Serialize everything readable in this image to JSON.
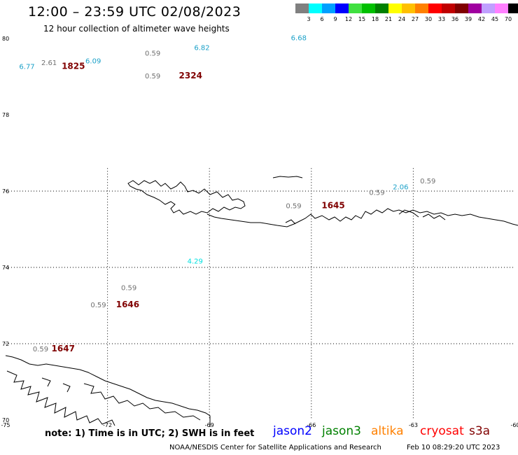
{
  "header": {
    "title": "12:00 – 23:59 UTC 02/08/2023",
    "subtitle": "12 hour collection of altimeter wave heights"
  },
  "legend": {
    "unit": "(ft)",
    "bins": [
      {
        "label": "3",
        "color": "#808080"
      },
      {
        "label": "6",
        "color": "#00ffff"
      },
      {
        "label": "9",
        "color": "#00a0ff"
      },
      {
        "label": "12",
        "color": "#0000ff"
      },
      {
        "label": "15",
        "color": "#40e040"
      },
      {
        "label": "18",
        "color": "#00c000"
      },
      {
        "label": "21",
        "color": "#008000"
      },
      {
        "label": "24",
        "color": "#ffff00"
      },
      {
        "label": "27",
        "color": "#ffc000"
      },
      {
        "label": "30",
        "color": "#ff8000"
      },
      {
        "label": "33",
        "color": "#ff0000"
      },
      {
        "label": "36",
        "color": "#c00000"
      },
      {
        "label": "39",
        "color": "#800000"
      },
      {
        "label": "42",
        "color": "#a000a0"
      },
      {
        "label": "45",
        "color": "#c0a0ff"
      },
      {
        "label": "70",
        "color": "#ff80ff"
      },
      {
        "label": "",
        "color": "#000000"
      }
    ]
  },
  "axes": {
    "lon_labels": [
      "-75",
      "-72",
      "-69",
      "-66",
      "-63",
      "-60"
    ],
    "lat_labels": [
      "80",
      "78",
      "76",
      "74",
      "72",
      "70"
    ]
  },
  "observations": [
    {
      "text": "6.68",
      "color": "#1aa0c8",
      "lon": -66.6,
      "lat": 79.95,
      "type": "value"
    },
    {
      "text": "6.82",
      "color": "#1aa0c8",
      "lon": -69.45,
      "lat": 79.7,
      "type": "value"
    },
    {
      "text": "0.59",
      "color": "#707070",
      "lon": -70.9,
      "lat": 79.55,
      "type": "value"
    },
    {
      "text": "2.61",
      "color": "#707070",
      "lon": -73.95,
      "lat": 79.3,
      "type": "value"
    },
    {
      "text": "6.09",
      "color": "#1aa0c8",
      "lon": -72.65,
      "lat": 79.35,
      "type": "value"
    },
    {
      "text": "6.77",
      "color": "#1aa0c8",
      "lon": -74.6,
      "lat": 79.2,
      "type": "value"
    },
    {
      "text": "1825",
      "color": "#800000",
      "lon": -73.35,
      "lat": 79.2,
      "type": "time"
    },
    {
      "text": "0.59",
      "color": "#707070",
      "lon": -70.9,
      "lat": 78.95,
      "type": "value"
    },
    {
      "text": "2324",
      "color": "#800000",
      "lon": -69.9,
      "lat": 78.95,
      "type": "time"
    },
    {
      "text": "0.59",
      "color": "#707070",
      "lon": -62.8,
      "lat": 76.2,
      "type": "value"
    },
    {
      "text": "2.06",
      "color": "#1aa0c8",
      "lon": -63.6,
      "lat": 76.05,
      "type": "value"
    },
    {
      "text": "0.59",
      "color": "#707070",
      "lon": -64.3,
      "lat": 75.9,
      "type": "value"
    },
    {
      "text": "0.59",
      "color": "#707070",
      "lon": -66.75,
      "lat": 75.55,
      "type": "value"
    },
    {
      "text": "1645",
      "color": "#800000",
      "lon": -65.7,
      "lat": 75.55,
      "type": "time"
    },
    {
      "text": "4.29",
      "color": "#00e0e0",
      "lon": -69.65,
      "lat": 74.1,
      "type": "value"
    },
    {
      "text": "0.59",
      "color": "#707070",
      "lon": -71.6,
      "lat": 73.4,
      "type": "value"
    },
    {
      "text": "0.59",
      "color": "#707070",
      "lon": -72.5,
      "lat": 72.95,
      "type": "value"
    },
    {
      "text": "1646",
      "color": "#800000",
      "lon": -71.75,
      "lat": 72.95,
      "type": "time"
    },
    {
      "text": "0.59",
      "color": "#707070",
      "lon": -74.2,
      "lat": 71.8,
      "type": "value"
    },
    {
      "text": "1647",
      "color": "#800000",
      "lon": -73.65,
      "lat": 71.8,
      "type": "time"
    }
  ],
  "footer": {
    "note": "note:  1) Time is in UTC;  2) SWH is in feet",
    "satellites": [
      {
        "name": "jason2",
        "color": "#0000ff"
      },
      {
        "name": "jason3",
        "color": "#008000"
      },
      {
        "name": "altika",
        "color": "#ff8000"
      },
      {
        "name": "cryosat",
        "color": "#ff0000"
      },
      {
        "name": "s3a",
        "color": "#800000"
      }
    ],
    "credit": "NOAA/NESDIS Center for Satellite Applications and Research",
    "timestamp": "Feb 10 08:29:20 UTC 2023"
  }
}
